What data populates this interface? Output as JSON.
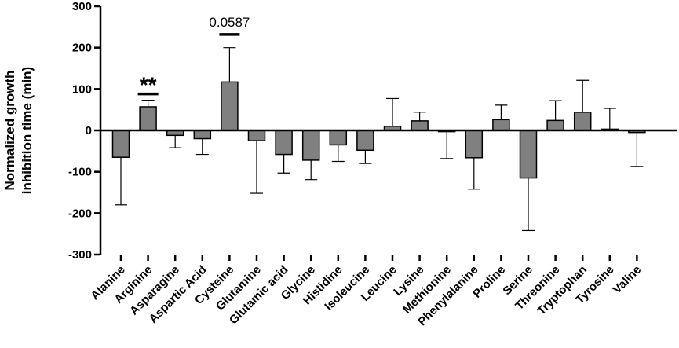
{
  "chart_data": {
    "type": "bar",
    "ylabel_lines": [
      "Normalized growth",
      "inhibition time (min)"
    ],
    "ylim": [
      -300,
      300
    ],
    "yticks": [
      300,
      200,
      100,
      0,
      -100,
      -200,
      -300
    ],
    "ytick_labels": [
      "300",
      "200",
      "100",
      "0",
      "-100",
      "-200",
      "-300"
    ],
    "categories": [
      "Alanine",
      "Arginine",
      "Asparagine",
      "Aspartic Acid",
      "Cysteine",
      "Glutamine",
      "Glutamic acid",
      "Glycine",
      "Histidine",
      "Isoleucine",
      "Leucine",
      "Lysine",
      "Methionine",
      "Phenylalanine",
      "Proline",
      "Serine",
      "Threonine",
      "Tryptophan",
      "Tyrosine",
      "Valine"
    ],
    "values": [
      -65,
      57,
      -12,
      -20,
      117,
      -25,
      -58,
      -72,
      -35,
      -48,
      10,
      23,
      -3,
      -66,
      26,
      -115,
      24,
      44,
      3,
      -5
    ],
    "errors": [
      115,
      16,
      30,
      38,
      83,
      127,
      45,
      47,
      40,
      32,
      67,
      21,
      65,
      76,
      35,
      127,
      48,
      77,
      50,
      82
    ],
    "bar_color": "#808080",
    "annotations": [
      {
        "category": "Arginine",
        "text": "**",
        "y": 88
      },
      {
        "category": "Cysteine",
        "text": "0.0587",
        "y": 232
      }
    ]
  }
}
